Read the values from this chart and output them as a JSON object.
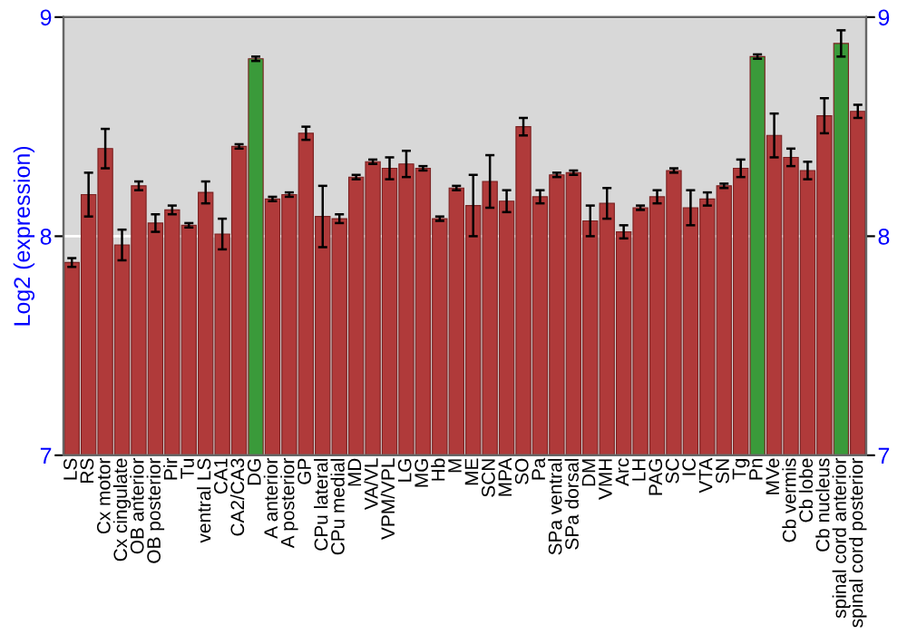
{
  "chart_data": {
    "type": "bar",
    "ylabel": "Log2 (expression)",
    "categories": [
      "LS",
      "RS",
      "Cx motor",
      "Cx cingulate",
      "OB anterior",
      "OB posterior",
      "Pir",
      "Tu",
      "ventral LS",
      "CA1",
      "CA2/CA3",
      "DG",
      "A anterior",
      "A posterior",
      "GP",
      "CPu lateral",
      "CPu medial",
      "MD",
      "VA/VL",
      "VPM/VPL",
      "LG",
      "MG",
      "Hb",
      "M",
      "ME",
      "SCN",
      "MPA",
      "SO",
      "Pa",
      "SPa ventral",
      "SPa dorsal",
      "DM",
      "VMH",
      "Arc",
      "LH",
      "PAG",
      "SC",
      "IC",
      "VTA",
      "SN",
      "Tg",
      "Pn",
      "MVe",
      "Cb vermis",
      "Cb lobe",
      "Cb nucleus",
      "spinal cord anterior",
      "spinal cord posterior"
    ],
    "values": [
      7.88,
      8.19,
      8.4,
      7.96,
      8.23,
      8.06,
      8.12,
      8.05,
      8.2,
      8.01,
      8.41,
      8.81,
      8.17,
      8.19,
      8.47,
      8.09,
      8.08,
      8.27,
      8.34,
      8.31,
      8.33,
      8.31,
      8.08,
      8.22,
      8.14,
      8.25,
      8.16,
      8.5,
      8.18,
      8.28,
      8.29,
      8.07,
      8.15,
      8.02,
      8.13,
      8.18,
      8.3,
      8.13,
      8.17,
      8.23,
      8.31,
      8.82,
      8.46,
      8.36,
      8.3,
      8.55,
      8.88,
      8.57
    ],
    "errors": [
      0.02,
      0.1,
      0.09,
      0.07,
      0.02,
      0.04,
      0.02,
      0.01,
      0.05,
      0.07,
      0.01,
      0.01,
      0.01,
      0.01,
      0.03,
      0.14,
      0.02,
      0.01,
      0.01,
      0.05,
      0.06,
      0.01,
      0.01,
      0.01,
      0.14,
      0.12,
      0.05,
      0.04,
      0.03,
      0.01,
      0.01,
      0.07,
      0.07,
      0.03,
      0.01,
      0.03,
      0.01,
      0.08,
      0.03,
      0.01,
      0.04,
      0.01,
      0.1,
      0.04,
      0.04,
      0.08,
      0.06,
      0.03
    ],
    "colors": [
      "#b03a3a",
      "#b03a3a",
      "#b03a3a",
      "#b03a3a",
      "#b03a3a",
      "#b03a3a",
      "#b03a3a",
      "#b03a3a",
      "#b03a3a",
      "#b03a3a",
      "#b03a3a",
      "#3a9a3a",
      "#b03a3a",
      "#b03a3a",
      "#b03a3a",
      "#b03a3a",
      "#b03a3a",
      "#b03a3a",
      "#b03a3a",
      "#b03a3a",
      "#b03a3a",
      "#b03a3a",
      "#b03a3a",
      "#b03a3a",
      "#b03a3a",
      "#b03a3a",
      "#b03a3a",
      "#b03a3a",
      "#b03a3a",
      "#b03a3a",
      "#b03a3a",
      "#b03a3a",
      "#b03a3a",
      "#b03a3a",
      "#b03a3a",
      "#b03a3a",
      "#b03a3a",
      "#b03a3a",
      "#b03a3a",
      "#b03a3a",
      "#b03a3a",
      "#3a9a3a",
      "#b03a3a",
      "#b03a3a",
      "#b03a3a",
      "#b03a3a",
      "#3a9a3a",
      "#b03a3a"
    ],
    "ylim": [
      7,
      9
    ],
    "yticks": [
      7,
      8,
      9
    ],
    "y2lim": [
      7,
      9
    ],
    "y2ticks": [
      7,
      8,
      9
    ],
    "grid": "y"
  }
}
